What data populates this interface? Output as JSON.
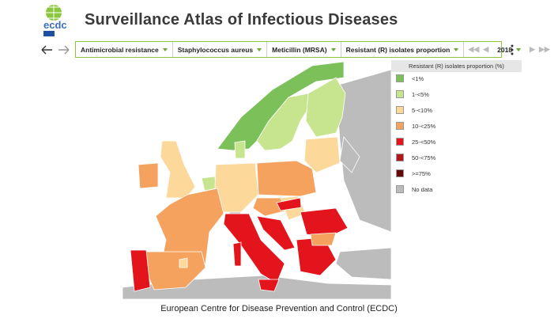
{
  "header": {
    "logo_text": "ecdc",
    "title": "Surveillance Atlas of Infectious Diseases"
  },
  "toolbar": {
    "filters": [
      "Antimicrobial resistance",
      "Staphylococcus aureus",
      "Meticillin (MRSA)",
      "Resistant (R) isolates proportion"
    ],
    "year": "2018"
  },
  "legend": {
    "title": "Resistant (R) isolates proportion (%)",
    "items": [
      {
        "label": "<1%",
        "color": "#7cc05a"
      },
      {
        "label": "1-<5%",
        "color": "#c7e58e"
      },
      {
        "label": "5-<10%",
        "color": "#fcd99b"
      },
      {
        "label": "10-<25%",
        "color": "#f5a25f"
      },
      {
        "label": "25-<50%",
        "color": "#e3141c"
      },
      {
        "label": "50-<75%",
        "color": "#b0181a"
      },
      {
        "label": ">=75%",
        "color": "#620808"
      },
      {
        "label": "No data",
        "color": "#bcbcbc"
      }
    ]
  },
  "caption": "European Centre for Disease Prevention and Control (ECDC)"
}
